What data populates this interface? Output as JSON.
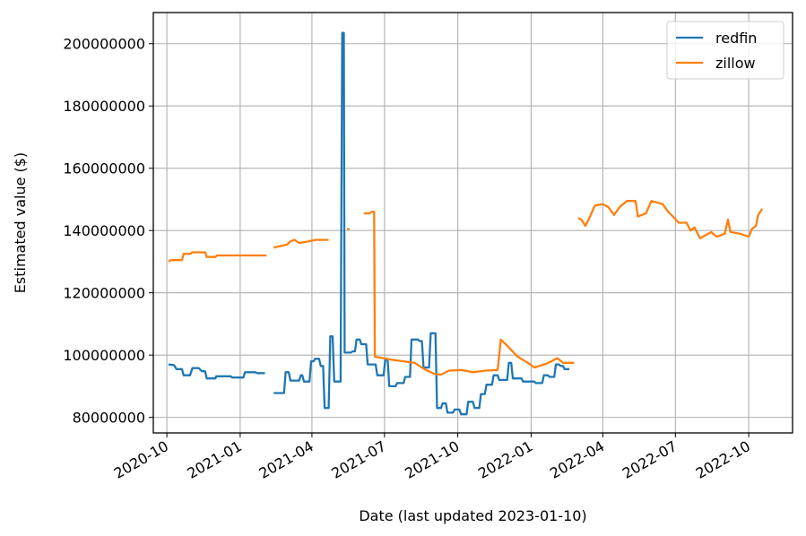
{
  "chart_data": {
    "type": "line",
    "title": "",
    "xlabel": "Date (last updated 2023-01-10)",
    "ylabel": "Estimated value ($)",
    "x_type": "date",
    "xlim": [
      "2020-09-14",
      "2022-11-25"
    ],
    "ylim": [
      75000000,
      210000000
    ],
    "x_ticks": [
      "2020-10-01",
      "2021-01-01",
      "2021-04-01",
      "2021-07-01",
      "2021-10-01",
      "2022-01-01",
      "2022-04-01",
      "2022-07-01",
      "2022-10-01"
    ],
    "x_tick_labels": [
      "2020-10",
      "2021-01",
      "2021-04",
      "2021-07",
      "2021-10",
      "2022-01",
      "2022-04",
      "2022-07",
      "2022-10"
    ],
    "y_ticks": [
      80000000,
      100000000,
      120000000,
      140000000,
      160000000,
      180000000,
      200000000
    ],
    "y_tick_labels": [
      "80000000",
      "100000000",
      "120000000",
      "140000000",
      "160000000",
      "180000000",
      "200000000"
    ],
    "grid": true,
    "legend_position": "top-right",
    "series": [
      {
        "name": "redfin",
        "color": "#1f77b4",
        "segments": [
          [
            [
              "2020-10-03",
              97000000
            ],
            [
              "2020-10-10",
              96800000
            ],
            [
              "2020-10-13",
              95500000
            ],
            [
              "2020-10-20",
              95500000
            ],
            [
              "2020-10-22",
              93500000
            ],
            [
              "2020-10-30",
              93500000
            ],
            [
              "2020-11-02",
              95800000
            ],
            [
              "2020-11-10",
              95800000
            ],
            [
              "2020-11-14",
              94800000
            ],
            [
              "2020-11-18",
              94800000
            ],
            [
              "2020-11-20",
              92500000
            ],
            [
              "2020-12-01",
              92500000
            ],
            [
              "2020-12-02",
              93200000
            ],
            [
              "2020-12-20",
              93200000
            ],
            [
              "2020-12-22",
              92800000
            ],
            [
              "2021-01-05",
              92800000
            ],
            [
              "2021-01-07",
              94500000
            ],
            [
              "2021-01-20",
              94500000
            ],
            [
              "2021-01-22",
              94200000
            ],
            [
              "2021-02-01",
              94200000
            ]
          ],
          [
            [
              "2021-02-12",
              87800000
            ],
            [
              "2021-02-25",
              87800000
            ],
            [
              "2021-02-27",
              94500000
            ],
            [
              "2021-03-03",
              94500000
            ],
            [
              "2021-03-05",
              91800000
            ],
            [
              "2021-03-16",
              91800000
            ],
            [
              "2021-03-18",
              93500000
            ],
            [
              "2021-03-20",
              93500000
            ],
            [
              "2021-03-22",
              91500000
            ],
            [
              "2021-03-29",
              91500000
            ],
            [
              "2021-03-31",
              98000000
            ],
            [
              "2021-04-03",
              98000000
            ],
            [
              "2021-04-05",
              98800000
            ],
            [
              "2021-04-10",
              98800000
            ],
            [
              "2021-04-12",
              96500000
            ],
            [
              "2021-04-15",
              96500000
            ],
            [
              "2021-04-17",
              83000000
            ],
            [
              "2021-04-22",
              83000000
            ],
            [
              "2021-04-24",
              106000000
            ],
            [
              "2021-04-27",
              106000000
            ],
            [
              "2021-04-29",
              91500000
            ],
            [
              "2021-05-07",
              91500000
            ],
            [
              "2021-05-09",
              203500000
            ],
            [
              "2021-05-11",
              203500000
            ],
            [
              "2021-05-12",
              100800000
            ],
            [
              "2021-05-20",
              100800000
            ],
            [
              "2021-05-22",
              101200000
            ],
            [
              "2021-05-25",
              101200000
            ],
            [
              "2021-05-27",
              105000000
            ],
            [
              "2021-05-31",
              105000000
            ],
            [
              "2021-06-02",
              103500000
            ],
            [
              "2021-06-08",
              103500000
            ],
            [
              "2021-06-10",
              97000000
            ],
            [
              "2021-06-20",
              97000000
            ],
            [
              "2021-06-22",
              93500000
            ],
            [
              "2021-06-30",
              93500000
            ],
            [
              "2021-07-02",
              98500000
            ],
            [
              "2021-07-05",
              98500000
            ],
            [
              "2021-07-07",
              90000000
            ],
            [
              "2021-07-15",
              90000000
            ],
            [
              "2021-07-17",
              91000000
            ],
            [
              "2021-07-25",
              91000000
            ],
            [
              "2021-07-27",
              93000000
            ],
            [
              "2021-08-02",
              93000000
            ],
            [
              "2021-08-04",
              105000000
            ],
            [
              "2021-08-12",
              105000000
            ],
            [
              "2021-08-14",
              104500000
            ],
            [
              "2021-08-17",
              104500000
            ],
            [
              "2021-08-19",
              96000000
            ],
            [
              "2021-08-26",
              96000000
            ],
            [
              "2021-08-28",
              107000000
            ],
            [
              "2021-09-03",
              107000000
            ],
            [
              "2021-09-05",
              83000000
            ],
            [
              "2021-09-10",
              83000000
            ],
            [
              "2021-09-12",
              84500000
            ],
            [
              "2021-09-16",
              84500000
            ],
            [
              "2021-09-18",
              81500000
            ],
            [
              "2021-09-25",
              81500000
            ],
            [
              "2021-09-27",
              82500000
            ],
            [
              "2021-10-03",
              82500000
            ],
            [
              "2021-10-05",
              81000000
            ],
            [
              "2021-10-12",
              81000000
            ],
            [
              "2021-10-14",
              85000000
            ],
            [
              "2021-10-20",
              85000000
            ],
            [
              "2021-10-22",
              83000000
            ],
            [
              "2021-10-28",
              83000000
            ],
            [
              "2021-10-30",
              87500000
            ],
            [
              "2021-11-04",
              87500000
            ],
            [
              "2021-11-06",
              90500000
            ],
            [
              "2021-11-13",
              90500000
            ],
            [
              "2021-11-15",
              93500000
            ],
            [
              "2021-11-20",
              93500000
            ],
            [
              "2021-11-22",
              92000000
            ],
            [
              "2021-12-02",
              92000000
            ],
            [
              "2021-12-04",
              97500000
            ],
            [
              "2021-12-07",
              97500000
            ],
            [
              "2021-12-09",
              92500000
            ],
            [
              "2021-12-20",
              92500000
            ],
            [
              "2021-12-22",
              91500000
            ],
            [
              "2022-01-05",
              91500000
            ],
            [
              "2022-01-07",
              91000000
            ],
            [
              "2022-01-15",
              91000000
            ],
            [
              "2022-01-17",
              93500000
            ],
            [
              "2022-01-22",
              93500000
            ],
            [
              "2022-01-24",
              93000000
            ],
            [
              "2022-01-30",
              93000000
            ],
            [
              "2022-02-01",
              97000000
            ],
            [
              "2022-02-05",
              97000000
            ],
            [
              "2022-02-07",
              96500000
            ],
            [
              "2022-02-10",
              96500000
            ],
            [
              "2022-02-12",
              95500000
            ],
            [
              "2022-02-18",
              95500000
            ]
          ]
        ]
      },
      {
        "name": "zillow",
        "color": "#ff7f0e",
        "segments": [
          [
            [
              "2020-10-03",
              130000000
            ],
            [
              "2020-10-06",
              130500000
            ],
            [
              "2020-10-20",
              130500000
            ],
            [
              "2020-10-22",
              132500000
            ],
            [
              "2020-10-30",
              132500000
            ],
            [
              "2020-11-02",
              133000000
            ],
            [
              "2020-11-18",
              133000000
            ],
            [
              "2020-11-20",
              131500000
            ],
            [
              "2020-12-01",
              131500000
            ],
            [
              "2020-12-03",
              132000000
            ],
            [
              "2021-02-03",
              132000000
            ]
          ],
          [
            [
              "2021-02-12",
              134500000
            ],
            [
              "2021-02-20",
              135000000
            ],
            [
              "2021-03-01",
              135500000
            ],
            [
              "2021-03-05",
              136500000
            ],
            [
              "2021-03-10",
              137000000
            ],
            [
              "2021-03-16",
              136000000
            ],
            [
              "2021-03-28",
              136500000
            ],
            [
              "2021-04-05",
              137000000
            ],
            [
              "2021-04-22",
              137000000
            ]
          ],
          [
            [
              "2021-05-15",
              140500000
            ],
            [
              "2021-05-18",
              140500000
            ]
          ],
          [
            [
              "2021-06-05",
              145500000
            ],
            [
              "2021-06-12",
              145500000
            ],
            [
              "2021-06-15",
              146000000
            ],
            [
              "2021-06-18",
              146000000
            ],
            [
              "2021-06-19",
              99500000
            ],
            [
              "2021-07-10",
              98500000
            ],
            [
              "2021-07-25",
              98000000
            ],
            [
              "2021-08-08",
              97500000
            ],
            [
              "2021-08-20",
              95500000
            ],
            [
              "2021-09-01",
              94000000
            ],
            [
              "2021-09-10",
              93700000
            ],
            [
              "2021-09-20",
              95000000
            ],
            [
              "2021-10-05",
              95200000
            ],
            [
              "2021-10-20",
              94500000
            ],
            [
              "2021-11-05",
              95000000
            ],
            [
              "2021-11-20",
              95200000
            ],
            [
              "2021-11-24",
              105000000
            ],
            [
              "2021-12-02",
              103000000
            ],
            [
              "2021-12-15",
              99500000
            ],
            [
              "2021-12-28",
              97500000
            ],
            [
              "2022-01-05",
              96000000
            ],
            [
              "2022-01-20",
              97200000
            ],
            [
              "2022-02-03",
              99000000
            ],
            [
              "2022-02-10",
              97500000
            ],
            [
              "2022-02-24",
              97500000
            ]
          ],
          [
            [
              "2022-03-01",
              144000000
            ],
            [
              "2022-03-05",
              143500000
            ],
            [
              "2022-03-10",
              141500000
            ],
            [
              "2022-03-15",
              144000000
            ],
            [
              "2022-03-22",
              148000000
            ],
            [
              "2022-04-01",
              148500000
            ],
            [
              "2022-04-08",
              147500000
            ],
            [
              "2022-04-15",
              145000000
            ],
            [
              "2022-04-22",
              147500000
            ],
            [
              "2022-05-01",
              149500000
            ],
            [
              "2022-05-12",
              149500000
            ],
            [
              "2022-05-15",
              144500000
            ],
            [
              "2022-05-25",
              145500000
            ],
            [
              "2022-06-01",
              149500000
            ],
            [
              "2022-06-15",
              148500000
            ],
            [
              "2022-06-22",
              146000000
            ],
            [
              "2022-06-28",
              144500000
            ],
            [
              "2022-07-05",
              142500000
            ],
            [
              "2022-07-15",
              142500000
            ],
            [
              "2022-07-20",
              140000000
            ],
            [
              "2022-07-25",
              141000000
            ],
            [
              "2022-08-01",
              137500000
            ],
            [
              "2022-08-08",
              138500000
            ],
            [
              "2022-08-15",
              139500000
            ],
            [
              "2022-08-22",
              138000000
            ],
            [
              "2022-09-01",
              139000000
            ],
            [
              "2022-09-05",
              143500000
            ],
            [
              "2022-09-08",
              139500000
            ],
            [
              "2022-09-20",
              139000000
            ],
            [
              "2022-10-01",
              138000000
            ],
            [
              "2022-10-05",
              140500000
            ],
            [
              "2022-10-10",
              141500000
            ],
            [
              "2022-10-13",
              145000000
            ],
            [
              "2022-10-18",
              147000000
            ]
          ]
        ]
      }
    ]
  }
}
